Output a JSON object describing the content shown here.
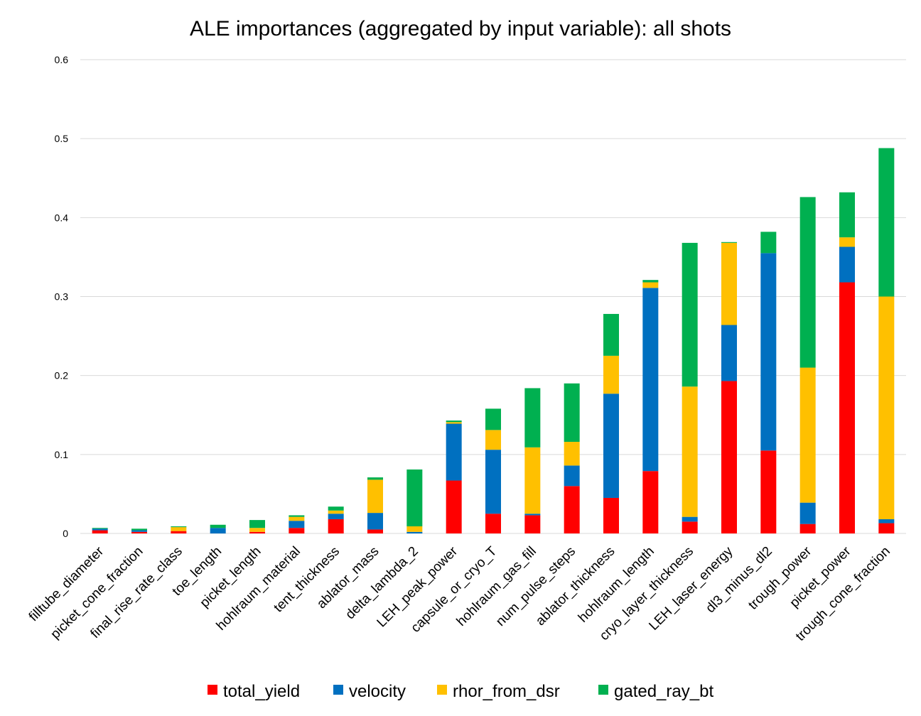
{
  "chart_data": {
    "type": "bar",
    "stacked": true,
    "title": "ALE importances (aggregated by input variable): all shots",
    "xlabel": "",
    "ylabel": "",
    "ylim": [
      0,
      0.6
    ],
    "yticks": [
      0,
      0.1,
      0.2,
      0.3,
      0.4,
      0.5,
      0.6
    ],
    "ytick_labels": [
      "0",
      "0.1",
      "0.2",
      "0.3",
      "0.4",
      "0.5",
      "0.6"
    ],
    "grid": true,
    "legend_position": "bottom",
    "categories": [
      "filltube_diameter",
      "picket_cone_fraction",
      "final_rise_rate_class",
      "toe_length",
      "picket_length",
      "hohlraum_material",
      "tent_thickness",
      "ablator_mass",
      "delta_lambda_2",
      "LEH_peak_power",
      "capsule_or_cryo_T",
      "hohlraum_gas_fill",
      "num_pulse_steps",
      "ablator_thickness",
      "hohlraum_length",
      "cryo_layer_thickness",
      "LEH_laser_energy",
      "dl3_minus_dl2",
      "trough_power",
      "picket_power",
      "trough_cone_fraction"
    ],
    "series": [
      {
        "name": "total_yield",
        "color": "#ff0000",
        "values": [
          0.004,
          0.002,
          0.003,
          0.0,
          0.002,
          0.007,
          0.018,
          0.005,
          0.0,
          0.067,
          0.025,
          0.023,
          0.06,
          0.045,
          0.079,
          0.015,
          0.193,
          0.105,
          0.012,
          0.318,
          0.013
        ]
      },
      {
        "name": "velocity",
        "color": "#0070c0",
        "values": [
          0.002,
          0.002,
          0.0,
          0.007,
          0.0,
          0.009,
          0.007,
          0.021,
          0.002,
          0.072,
          0.081,
          0.002,
          0.026,
          0.132,
          0.232,
          0.006,
          0.071,
          0.25,
          0.027,
          0.045,
          0.005
        ]
      },
      {
        "name": "rhor_from_dsr",
        "color": "#ffc000",
        "values": [
          0.0,
          0.0,
          0.005,
          0.0,
          0.005,
          0.005,
          0.004,
          0.042,
          0.007,
          0.002,
          0.025,
          0.084,
          0.03,
          0.048,
          0.007,
          0.165,
          0.104,
          0.0,
          0.171,
          0.012,
          0.282
        ]
      },
      {
        "name": "gated_ray_bt",
        "color": "#00b050",
        "values": [
          0.001,
          0.002,
          0.001,
          0.004,
          0.01,
          0.002,
          0.005,
          0.003,
          0.072,
          0.002,
          0.027,
          0.075,
          0.074,
          0.053,
          0.003,
          0.182,
          0.001,
          0.027,
          0.216,
          0.057,
          0.188
        ]
      }
    ]
  }
}
